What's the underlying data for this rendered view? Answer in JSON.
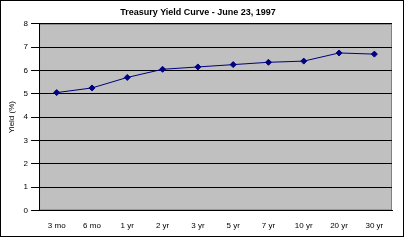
{
  "chart_data": {
    "type": "line",
    "title": "Treasury Yield Curve - June 23, 1997",
    "y_label": "Yield (%)",
    "categories": [
      "3 mo",
      "6 mo",
      "1 yr",
      "2 yr",
      "3 yr",
      "5 yr",
      "7 yr",
      "10 yr",
      "20 yr",
      "30 yr"
    ],
    "values": [
      5.05,
      5.25,
      5.7,
      6.05,
      6.15,
      6.25,
      6.35,
      6.4,
      6.75,
      6.7
    ],
    "color": "#000080",
    "marker": "diamond",
    "line_style": "solid",
    "ylim": [
      0,
      8
    ],
    "yticks": [
      0,
      1,
      2,
      3,
      4,
      5,
      6,
      7,
      8
    ],
    "grid": true
  }
}
